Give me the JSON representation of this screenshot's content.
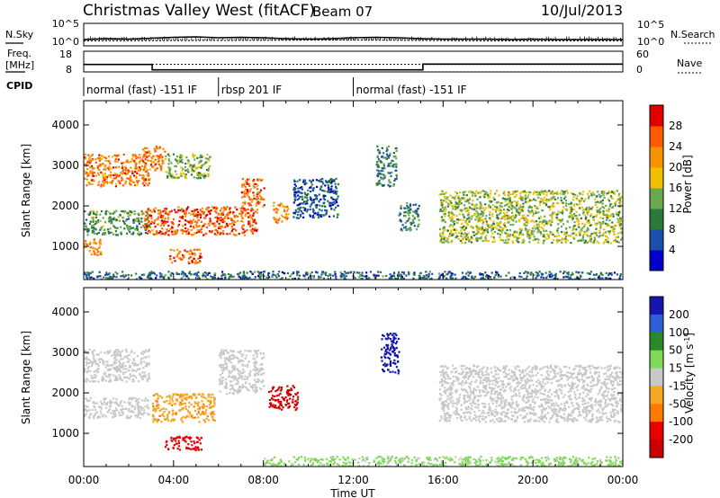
{
  "header": {
    "station": "Christmas Valley West (fitACF)",
    "beam": "Beam 07",
    "date": "10/Jul/2013"
  },
  "noise_panel": {
    "left_label": "N.Sky",
    "right_label": "N.Search",
    "left_ticks": [
      "10^5",
      "10^0"
    ],
    "right_ticks": [
      "10^5",
      "10^0"
    ]
  },
  "freq_panel": {
    "left_label": "Freq.",
    "left_unit": "[MHz]",
    "right_label": "Nave",
    "left_ticks": [
      "18",
      "8"
    ],
    "right_ticks": [
      "60",
      "0"
    ]
  },
  "cpid": {
    "label": "CPID",
    "segments": [
      {
        "text": "normal (fast) -151 IF",
        "start": "00:00"
      },
      {
        "text": "rbsp 201 IF",
        "start": "06:00"
      },
      {
        "text": "normal (fast) -151 IF",
        "start": "12:00"
      }
    ]
  },
  "colorbars": {
    "power": {
      "title": "Power [dB]",
      "ticks": [
        "28",
        "24",
        "20",
        "16",
        "12",
        "8",
        "4"
      ],
      "colors": [
        "#0000cc",
        "#1a4faa",
        "#2a7a3a",
        "#6aa84f",
        "#f0c000",
        "#f59400",
        "#ff5a00",
        "#e00000"
      ]
    },
    "velocity": {
      "title": "Velocity [m s",
      "title_sup": "-1",
      "title_end": "]",
      "ticks": [
        "200",
        "100",
        "50",
        "15",
        "-15",
        "-50",
        "-100",
        "-200"
      ],
      "colors": [
        "#1515b0",
        "#2e5fd6",
        "#2a8a2a",
        "#7ed957",
        "#c8c8c8",
        "#f5a623",
        "#ff7a00",
        "#e80000",
        "#cc0000"
      ]
    }
  },
  "chart_data": {
    "type": "heatmap",
    "xlabel": "Time UT",
    "ylabel": "Slant Range [km]",
    "xticks": [
      "00:00",
      "04:00",
      "08:00",
      "12:00",
      "16:00",
      "20:00",
      "00:00"
    ],
    "yticks": [
      1000,
      2000,
      3000,
      4000
    ],
    "xlim": [
      0,
      24
    ],
    "ylim": [
      180,
      4600
    ],
    "noise": {
      "sky_log10": [
        [
          0,
          1.4
        ],
        [
          1,
          1.6
        ],
        [
          2,
          1.5
        ],
        [
          3,
          1.7
        ],
        [
          4,
          1.9
        ],
        [
          5,
          2.0
        ],
        [
          6,
          1.8
        ],
        [
          7,
          1.9
        ],
        [
          8,
          1.8
        ],
        [
          9,
          1.6
        ],
        [
          10,
          1.5
        ],
        [
          11,
          1.6
        ],
        [
          12,
          1.8
        ],
        [
          13,
          1.9
        ],
        [
          14,
          1.8
        ],
        [
          15,
          1.6
        ],
        [
          16,
          1.5
        ],
        [
          17,
          1.5
        ],
        [
          18,
          1.5
        ],
        [
          19,
          1.4
        ],
        [
          20,
          1.5
        ],
        [
          21,
          1.4
        ],
        [
          22,
          1.4
        ],
        [
          23,
          1.4
        ],
        [
          24,
          1.4
        ]
      ],
      "search_log10": [
        [
          0,
          1.1
        ],
        [
          6,
          1.2
        ],
        [
          12,
          1.3
        ],
        [
          18,
          1.1
        ],
        [
          24,
          1.1
        ]
      ]
    },
    "frequency_mhz": [
      [
        0,
        11.6
      ],
      [
        3.05,
        11.6
      ],
      [
        3.05,
        9.0
      ],
      [
        15.1,
        9.0
      ],
      [
        15.1,
        11.8
      ],
      [
        24,
        11.8
      ]
    ],
    "nave": [
      [
        0,
        22
      ],
      [
        24,
        22
      ]
    ],
    "power_db": [
      {
        "t_start": 0.0,
        "t_end": 2.9,
        "range_start": 2500,
        "range_end": 3300,
        "power": 24
      },
      {
        "t_start": 0.0,
        "t_end": 2.9,
        "range_start": 1300,
        "range_end": 1900,
        "power": 12
      },
      {
        "t_start": 0.0,
        "t_end": 0.8,
        "range_start": 800,
        "range_end": 1200,
        "power": 22
      },
      {
        "t_start": 2.6,
        "t_end": 3.6,
        "range_start": 2900,
        "range_end": 3500,
        "power": 24
      },
      {
        "t_start": 3.6,
        "t_end": 5.6,
        "range_start": 2700,
        "range_end": 3300,
        "power": 14
      },
      {
        "t_start": 2.6,
        "t_end": 7.7,
        "range_start": 1300,
        "range_end": 2000,
        "power": 26
      },
      {
        "t_start": 3.8,
        "t_end": 5.2,
        "range_start": 600,
        "range_end": 950,
        "power": 25
      },
      {
        "t_start": 7.0,
        "t_end": 8.0,
        "range_start": 2000,
        "range_end": 2700,
        "power": 25
      },
      {
        "t_start": 8.4,
        "t_end": 9.1,
        "range_start": 1600,
        "range_end": 2100,
        "power": 23
      },
      {
        "t_start": 9.3,
        "t_end": 11.3,
        "range_start": 1700,
        "range_end": 2700,
        "power": 6
      },
      {
        "t_start": 13.0,
        "t_end": 13.9,
        "range_start": 2500,
        "range_end": 3500,
        "power": 10
      },
      {
        "t_start": 14.0,
        "t_end": 14.9,
        "range_start": 1400,
        "range_end": 2100,
        "power": 10
      },
      {
        "t_start": 15.8,
        "t_end": 24.0,
        "range_start": 1100,
        "range_end": 2400,
        "power": 15
      },
      {
        "t_start": 0.0,
        "t_end": 24.0,
        "range_start": 200,
        "range_end": 400,
        "power": 8
      }
    ],
    "velocity_ms": [
      {
        "t_start": 0.0,
        "t_end": 2.9,
        "range_start": 2300,
        "range_end": 3100,
        "velocity": 0
      },
      {
        "t_start": 0.0,
        "t_end": 2.9,
        "range_start": 1400,
        "range_end": 1900,
        "velocity": 0
      },
      {
        "t_start": 3.0,
        "t_end": 5.8,
        "range_start": 1300,
        "range_end": 2000,
        "velocity": -40
      },
      {
        "t_start": 3.6,
        "t_end": 5.2,
        "range_start": 600,
        "range_end": 950,
        "velocity": -150
      },
      {
        "t_start": 6.0,
        "t_end": 8.0,
        "range_start": 2000,
        "range_end": 3100,
        "velocity": 0
      },
      {
        "t_start": 8.2,
        "t_end": 9.5,
        "range_start": 1600,
        "range_end": 2200,
        "velocity": -250
      },
      {
        "t_start": 13.2,
        "t_end": 14.0,
        "range_start": 2500,
        "range_end": 3500,
        "velocity": 250
      },
      {
        "t_start": 15.8,
        "t_end": 24.0,
        "range_start": 1300,
        "range_end": 2700,
        "velocity": 0
      },
      {
        "t_start": 8.0,
        "t_end": 24.0,
        "range_start": 200,
        "range_end": 450,
        "velocity": 25
      }
    ]
  }
}
